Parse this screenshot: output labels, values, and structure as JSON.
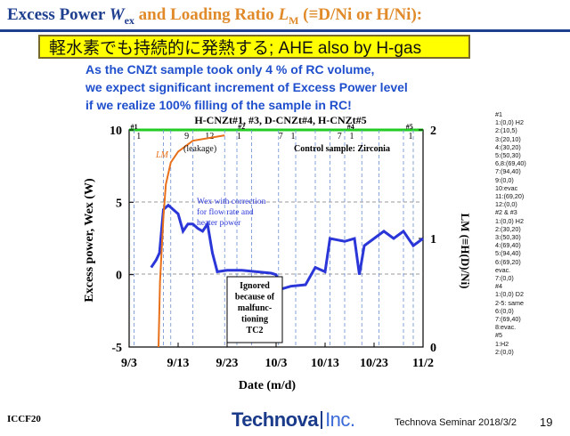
{
  "title": {
    "p1": "Excess Power ",
    "w_sym": "W",
    "w_sub": "ex",
    "p2": "  and Loading Ratio ",
    "l_sym": "L",
    "l_sub": "M",
    "p3": " (≡D/Ni or H/Ni):"
  },
  "banner": "軽水素でも持続的に発熱する; AHE also by H-gas",
  "notes": [
    "As the CNZt sample took only 4 % of RC volume,",
    "we expect significant increment of Excess Power level",
    " if we realize 100% filling of the sample in RC!"
  ],
  "chart": {
    "title": "H-CNZt#1, #3, D-CNZt#4, H-CNZt#5",
    "xlabel": "Date  (m/d)",
    "ylabel_left": "Excess power, Wex  (W)",
    "ylabel_right": "LM  (≡H(D)/Ni)",
    "x_ticks": [
      "9/3",
      "9/13",
      "9/23",
      "10/3",
      "10/13",
      "10/23",
      "11/2"
    ],
    "y_left_ticks": [
      "10",
      "5",
      "0",
      "-5"
    ],
    "y_right_ticks": [
      "2",
      "1",
      "0"
    ],
    "annotations": {
      "leakage": "(leakage)",
      "control": "Control sample: Zirconia",
      "lm": "LM",
      "wex_note_1": "Wex with correction",
      "wex_note_2": "for flow rate and",
      "wex_note_3": "heater power",
      "ignored": [
        "Ignored",
        "because of",
        "malfunc-",
        "tioning",
        "TC2"
      ]
    },
    "run_labels": [
      "#1",
      "#2",
      "#3",
      "#4",
      "#5"
    ],
    "phase_numbers": [
      "1",
      "9",
      "12",
      "1",
      "7",
      "1",
      "7",
      "1",
      "1"
    ]
  },
  "chart_data": {
    "type": "line",
    "title": "H-CNZt#1, #3, D-CNZt#4, H-CNZt#5",
    "xlabel": "Date  (m/d)",
    "ylabel": "Excess power, Wex  (W)",
    "y2label": "LM  (≡H(D)/Ni)",
    "xlim_days": [
      0,
      60
    ],
    "x_ticks": [
      "9/3",
      "9/13",
      "9/23",
      "10/3",
      "10/13",
      "10/23",
      "11/2"
    ],
    "ylim": [
      -5,
      10
    ],
    "y2lim": [
      0,
      2
    ],
    "series": [
      {
        "name": "Wex",
        "axis": "left",
        "color": "#2a36d8",
        "points": [
          [
            4.5,
            0.5
          ],
          [
            5.5,
            1
          ],
          [
            6.2,
            1.5
          ],
          [
            7,
            4.5
          ],
          [
            8,
            4.8
          ],
          [
            9,
            4.5
          ],
          [
            10,
            4.2
          ],
          [
            11,
            3
          ],
          [
            12,
            3.5
          ],
          [
            13,
            3.5
          ],
          [
            14,
            3.2
          ],
          [
            15,
            3
          ],
          [
            16,
            3.5
          ],
          [
            17,
            1.5
          ],
          [
            18,
            0.2
          ],
          [
            20,
            0.3
          ],
          [
            23,
            0.3
          ],
          [
            26,
            0.2
          ],
          [
            29,
            0.1
          ],
          [
            30,
            0
          ],
          [
            31,
            -1
          ],
          [
            33,
            -0.8
          ],
          [
            36,
            -0.7
          ],
          [
            38,
            0.5
          ],
          [
            40,
            0.2
          ],
          [
            41,
            2.5
          ],
          [
            44,
            2.3
          ],
          [
            46,
            2.5
          ],
          [
            47,
            0
          ],
          [
            48,
            2
          ],
          [
            50,
            2.5
          ],
          [
            52,
            3
          ],
          [
            54,
            2.5
          ],
          [
            56,
            3
          ],
          [
            58,
            2
          ],
          [
            60,
            2.5
          ]
        ]
      },
      {
        "name": "LM",
        "axis": "right",
        "color": "#e8701a",
        "points": [
          [
            6,
            0
          ],
          [
            6.3,
            0.6
          ],
          [
            7,
            1.2
          ],
          [
            7.5,
            1.5
          ],
          [
            8.5,
            1.7
          ],
          [
            10,
            1.8
          ],
          [
            13,
            1.9
          ],
          [
            19.5,
            1.95
          ]
        ]
      }
    ]
  },
  "sidebar": [
    "#1",
    "1:(0,0) H2",
    "2:(10,5)",
    "3:(20,10)",
    "4:(30,20)",
    "5:(50,30)",
    "6,8:(69,40)",
    "7:(94,40)",
    "9:(0,0)",
    "10:evac",
    "11:(69,20)",
    "12:(0,0)",
    "#2 & #3",
    "1:(0,0) H2",
    "2:(30,20)",
    "3:(50,30)",
    "4:(69,40)",
    "5:(94,40)",
    "6:(69,20)",
    "     evac.",
    "7:(0,0)",
    "#4",
    "1:(0,0) D2",
    "2-5: same",
    "6:(0,0)",
    "7:(69,40)",
    "8:evac.",
    "#5",
    "1:H2",
    "2:(0,0)"
  ],
  "footer": {
    "left": "ICCF20",
    "logo_main": "Technova",
    "logo_inc": "Inc.",
    "seminar": "Technova Seminar 2018/3/2",
    "page": "19"
  }
}
